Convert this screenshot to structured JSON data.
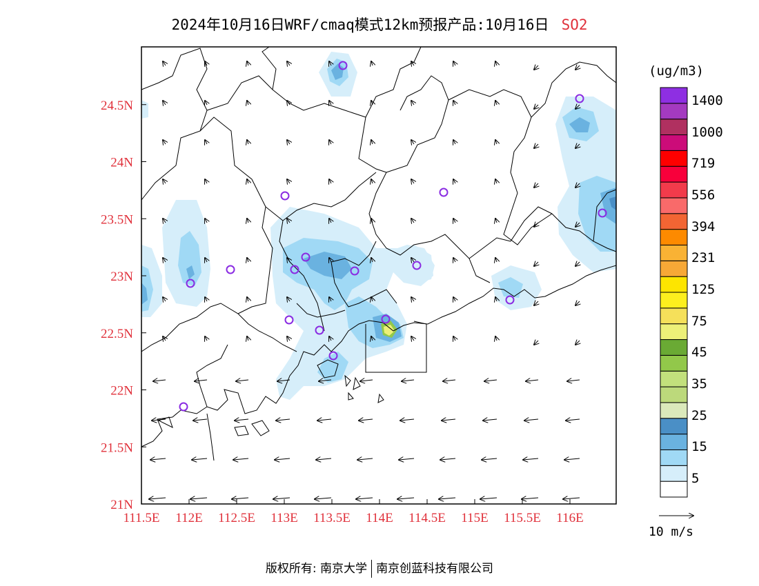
{
  "title": {
    "text": "2024年10月16日WRF/cmaq模式12km预报产品:10月16日",
    "species": "SO2"
  },
  "colors": {
    "axis_label": "#e0303a",
    "marker": "#8a2be2"
  },
  "map": {
    "x_ticks": [
      "111.5E",
      "112E",
      "112.5E",
      "113E",
      "113.5E",
      "114E",
      "114.5E",
      "115E",
      "115.5E",
      "116E"
    ],
    "y_ticks": [
      "21N",
      "21.5N",
      "22N",
      "22.5N",
      "23N",
      "23.5N",
      "24N",
      "24.5N"
    ],
    "lon_range": [
      111.5,
      116.4
    ],
    "lat_range": [
      21.0,
      25.0
    ]
  },
  "colorbar": {
    "unit": "(ug/m3)",
    "colors": [
      "#ffffff",
      "#d6eefa",
      "#a0d9f5",
      "#6ab2e0",
      "#4a8fc6",
      "#dbe9bb",
      "#bcd97b",
      "#c2e07c",
      "#92c84a",
      "#6aaa34",
      "#edf078",
      "#f5e05a",
      "#fdef1e",
      "#fde500",
      "#f7a836",
      "#f9b234",
      "#fd8a00",
      "#f26533",
      "#f96a6a",
      "#f23b4b",
      "#f8003b",
      "#fe0000",
      "#cc0c79",
      "#b03060",
      "#a43ac0",
      "#8e2fe2"
    ],
    "labels": [
      "5",
      "15",
      "25",
      "35",
      "45",
      "75",
      "125",
      "231",
      "394",
      "556",
      "719",
      "1000",
      "1400"
    ]
  },
  "wind_reference": "10 m/s",
  "footer": {
    "left": "版权所有: 南京大学",
    "right": "南京创蓝科技有限公司"
  }
}
